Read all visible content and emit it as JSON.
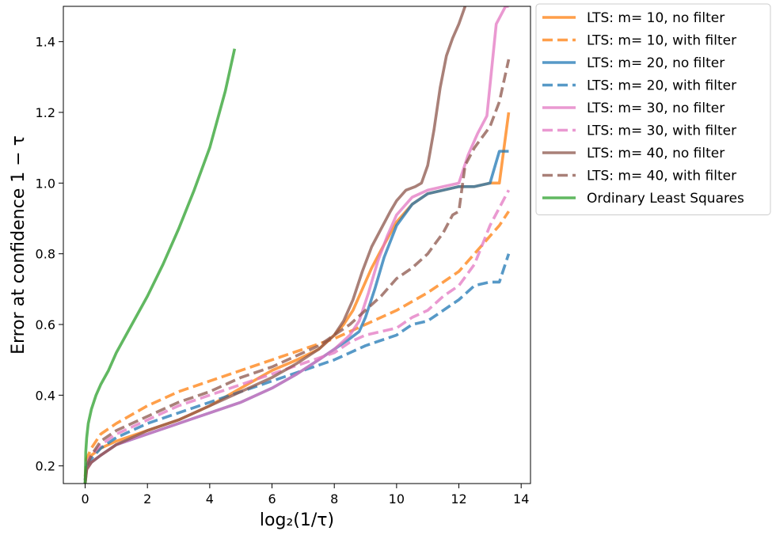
{
  "chart_data": {
    "type": "line",
    "xlabel": "log₂(1/τ)",
    "ylabel": "Error at confidence 1 − τ",
    "xlim": [
      -0.7,
      14.3
    ],
    "ylim": [
      0.15,
      1.5
    ],
    "xticks": [
      0,
      2,
      4,
      6,
      8,
      10,
      12,
      14
    ],
    "yticks": [
      0.2,
      0.4,
      0.6,
      0.8,
      1.0,
      1.2,
      1.4
    ],
    "grid": false,
    "legend_position": "outside-right-top",
    "series": [
      {
        "name": "LTS: m= 10, no filter",
        "color": "#ff7f0e",
        "dash": "solid",
        "x": [
          0,
          0.05,
          0.2,
          0.5,
          1,
          2,
          3,
          4,
          5,
          6,
          6.8,
          7.5,
          8,
          8.3,
          8.6,
          8.9,
          9.2,
          9.5,
          10,
          10.5,
          11,
          11.5,
          12,
          12.5,
          13,
          13.3,
          13.6
        ],
        "y": [
          0.15,
          0.2,
          0.23,
          0.25,
          0.27,
          0.3,
          0.33,
          0.37,
          0.42,
          0.47,
          0.5,
          0.53,
          0.57,
          0.6,
          0.64,
          0.7,
          0.76,
          0.81,
          0.89,
          0.94,
          0.97,
          0.98,
          0.99,
          0.99,
          1.0,
          1.0,
          1.2
        ]
      },
      {
        "name": "LTS: m= 10, with filter",
        "color": "#ff7f0e",
        "dash": "dashed",
        "x": [
          0,
          0.05,
          0.2,
          0.5,
          1,
          2,
          3,
          4,
          5,
          6,
          7,
          8,
          8.5,
          9,
          10,
          11,
          11.5,
          12,
          12.5,
          13,
          13.3,
          13.6
        ],
        "y": [
          0.17,
          0.22,
          0.25,
          0.29,
          0.32,
          0.37,
          0.41,
          0.44,
          0.47,
          0.5,
          0.53,
          0.56,
          0.58,
          0.6,
          0.64,
          0.69,
          0.72,
          0.75,
          0.8,
          0.85,
          0.88,
          0.92
        ]
      },
      {
        "name": "LTS: m= 20, no filter",
        "color": "#1f77b4",
        "dash": "solid",
        "x": [
          0,
          0.05,
          0.2,
          0.5,
          1,
          2,
          3,
          4,
          5,
          6,
          6.8,
          7.5,
          8,
          8.5,
          8.8,
          9,
          9.3,
          9.6,
          10,
          10.5,
          11,
          11.5,
          12,
          12.5,
          13,
          13.3,
          13.6
        ],
        "y": [
          0.15,
          0.2,
          0.21,
          0.23,
          0.26,
          0.29,
          0.32,
          0.35,
          0.38,
          0.42,
          0.46,
          0.5,
          0.53,
          0.56,
          0.58,
          0.62,
          0.7,
          0.79,
          0.88,
          0.94,
          0.97,
          0.98,
          0.99,
          0.99,
          1.0,
          1.09,
          1.09
        ]
      },
      {
        "name": "LTS: m= 20, with filter",
        "color": "#1f77b4",
        "dash": "dashed",
        "x": [
          0,
          0.05,
          0.2,
          0.5,
          1,
          2,
          3,
          4,
          5,
          6,
          7,
          8,
          8.5,
          9,
          10,
          10.5,
          11,
          11.5,
          12,
          12.5,
          13,
          13.3,
          13.6
        ],
        "y": [
          0.16,
          0.2,
          0.22,
          0.25,
          0.28,
          0.32,
          0.35,
          0.38,
          0.41,
          0.44,
          0.47,
          0.5,
          0.52,
          0.54,
          0.57,
          0.6,
          0.61,
          0.64,
          0.67,
          0.71,
          0.72,
          0.72,
          0.8
        ]
      },
      {
        "name": "LTS: m= 30, no filter",
        "color": "#e377c2",
        "dash": "solid",
        "x": [
          0,
          0.05,
          0.2,
          0.5,
          1,
          2,
          3,
          4,
          5,
          6,
          6.8,
          7.5,
          8,
          8.5,
          8.8,
          9.1,
          9.4,
          9.7,
          10,
          10.5,
          11,
          11.5,
          12,
          12.3,
          12.6,
          12.9,
          13.2,
          13.5,
          13.6
        ],
        "y": [
          0.15,
          0.19,
          0.21,
          0.23,
          0.26,
          0.29,
          0.32,
          0.35,
          0.38,
          0.42,
          0.46,
          0.5,
          0.53,
          0.57,
          0.61,
          0.69,
          0.78,
          0.85,
          0.91,
          0.96,
          0.98,
          0.99,
          1.0,
          1.08,
          1.14,
          1.19,
          1.45,
          1.5,
          1.5
        ]
      },
      {
        "name": "LTS: m= 30, with filter",
        "color": "#e377c2",
        "dash": "dashed",
        "x": [
          0,
          0.05,
          0.2,
          0.5,
          1,
          2,
          3,
          4,
          5,
          6,
          7,
          8,
          8.5,
          9,
          10,
          10.5,
          11,
          11.5,
          12,
          12.5,
          13,
          13.3,
          13.6
        ],
        "y": [
          0.16,
          0.21,
          0.23,
          0.26,
          0.29,
          0.33,
          0.37,
          0.4,
          0.43,
          0.46,
          0.49,
          0.52,
          0.55,
          0.57,
          0.59,
          0.62,
          0.64,
          0.68,
          0.71,
          0.77,
          0.88,
          0.93,
          0.98
        ]
      },
      {
        "name": "LTS: m= 40, no filter",
        "color": "#8c564b",
        "dash": "solid",
        "x": [
          0,
          0.05,
          0.2,
          0.5,
          1,
          2,
          3,
          4,
          5,
          6,
          6.8,
          7.5,
          8,
          8.3,
          8.6,
          8.9,
          9.2,
          9.5,
          9.8,
          10,
          10.3,
          10.6,
          10.8,
          11,
          11.2,
          11.4,
          11.6,
          11.8,
          12,
          12.2
        ],
        "y": [
          0.15,
          0.19,
          0.21,
          0.23,
          0.26,
          0.3,
          0.33,
          0.37,
          0.41,
          0.45,
          0.49,
          0.53,
          0.57,
          0.61,
          0.67,
          0.75,
          0.82,
          0.87,
          0.92,
          0.95,
          0.98,
          0.99,
          1.0,
          1.05,
          1.15,
          1.27,
          1.36,
          1.41,
          1.45,
          1.5
        ]
      },
      {
        "name": "LTS: m= 40, with filter",
        "color": "#8c564b",
        "dash": "dashed",
        "x": [
          0,
          0.05,
          0.2,
          0.5,
          1,
          2,
          3,
          4,
          5,
          6,
          7,
          7.5,
          8,
          8.5,
          9,
          9.5,
          10,
          10.5,
          11,
          11.5,
          11.8,
          12,
          12.2,
          12.5,
          13,
          13.3,
          13.6
        ],
        "y": [
          0.16,
          0.2,
          0.23,
          0.27,
          0.3,
          0.34,
          0.38,
          0.41,
          0.45,
          0.48,
          0.52,
          0.54,
          0.57,
          0.6,
          0.64,
          0.68,
          0.73,
          0.76,
          0.8,
          0.86,
          0.91,
          0.92,
          1.05,
          1.1,
          1.16,
          1.23,
          1.35
        ]
      },
      {
        "name": "Ordinary Least Squares",
        "color": "#2ca02c",
        "dash": "solid",
        "x": [
          0,
          0.02,
          0.05,
          0.1,
          0.2,
          0.35,
          0.5,
          0.75,
          1,
          1.5,
          2,
          2.5,
          3,
          3.5,
          4,
          4.5,
          4.8
        ],
        "y": [
          0.15,
          0.24,
          0.28,
          0.32,
          0.36,
          0.4,
          0.43,
          0.47,
          0.52,
          0.6,
          0.68,
          0.77,
          0.87,
          0.98,
          1.1,
          1.26,
          1.38
        ]
      }
    ]
  }
}
